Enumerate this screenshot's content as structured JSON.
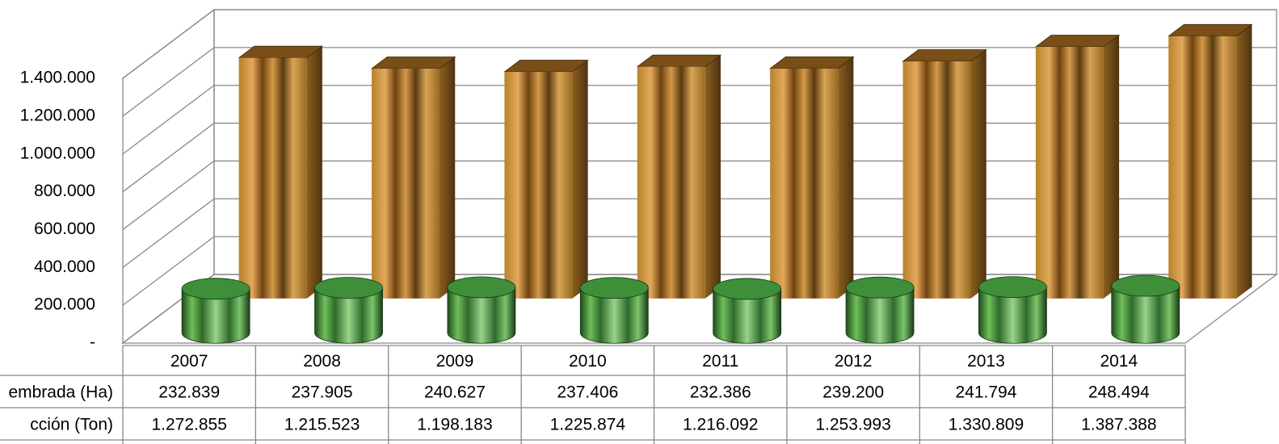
{
  "chart_data": {
    "type": "bar3d",
    "categories": [
      "2007",
      "2008",
      "2009",
      "2010",
      "2011",
      "2012",
      "2013",
      "2014"
    ],
    "series": [
      {
        "name": "embrada (Ha)",
        "color": "#3f8f3a",
        "values": [
          232839,
          237905,
          240627,
          237406,
          232386,
          239200,
          241794,
          248494
        ],
        "value_labels": [
          "232.839",
          "237.905",
          "240.627",
          "237.406",
          "232.386",
          "239.200",
          "241.794",
          "248.494"
        ]
      },
      {
        "name": "cción (Ton)",
        "color": "#c8902e",
        "values": [
          1272855,
          1215523,
          1198183,
          1225874,
          1216092,
          1253993,
          1330809,
          1387388
        ],
        "value_labels": [
          "1.272.855",
          "1.215.523",
          "1.198.183",
          "1.225.874",
          "1.216.092",
          "1.253.993",
          "1.330.809",
          "1.387.388"
        ]
      }
    ],
    "ylim": [
      0,
      1400000
    ],
    "yticks": [
      {
        "value": 0,
        "label": "-"
      },
      {
        "value": 200000,
        "label": "200.000"
      },
      {
        "value": 400000,
        "label": "400.000"
      },
      {
        "value": 600000,
        "label": "600.000"
      },
      {
        "value": 800000,
        "label": "800.000"
      },
      {
        "value": 1000000,
        "label": "1.000.000"
      },
      {
        "value": 1200000,
        "label": "1.200.000"
      },
      {
        "value": 1400000,
        "label": "1.400.000"
      }
    ],
    "grid": true
  }
}
